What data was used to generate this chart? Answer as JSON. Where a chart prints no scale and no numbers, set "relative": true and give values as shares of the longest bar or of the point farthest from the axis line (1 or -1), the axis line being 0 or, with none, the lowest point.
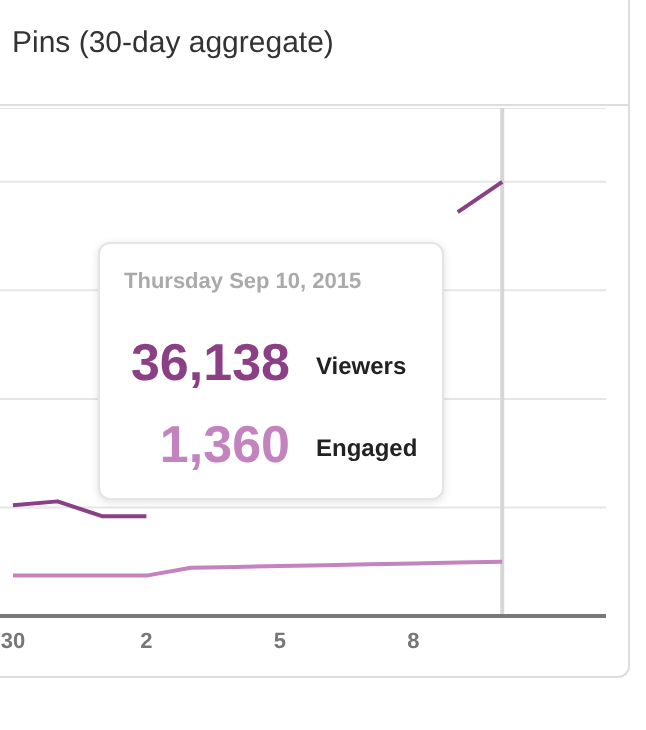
{
  "chart_data": {
    "type": "line",
    "title": "Pins (30-day aggregate)",
    "x": [
      "2015-08-30",
      "2015-08-31",
      "2015-09-01",
      "2015-09-02",
      "2015-09-03",
      "2015-09-04",
      "2015-09-05",
      "2015-09-06",
      "2015-09-07",
      "2015-09-08",
      "2015-09-09",
      "2015-09-10"
    ],
    "xlim": [
      "2015-08-29T17:00",
      "2015-09-12T08:00"
    ],
    "xticks": [
      {
        "value": "2015-08-30",
        "label": "30"
      },
      {
        "value": "2015-09-02",
        "label": "2"
      },
      {
        "value": "2015-09-05",
        "label": "5"
      },
      {
        "value": "2015-09-08",
        "label": "8"
      }
    ],
    "relative": true,
    "series": [
      {
        "color": "#8b3f84",
        "values": [
          0.255,
          0.264,
          0.23,
          0.23,
          null,
          null,
          null,
          null,
          null,
          null,
          0.93,
          1
        ]
      },
      {
        "color": "#c283bf",
        "values": [
          0.093,
          0.093,
          0.093,
          0.093,
          0.111,
          0.113,
          0.115,
          0.117,
          0.119,
          0.121,
          0.123,
          0.125
        ]
      }
    ],
    "annotations": [
      "Thursday Sep 10, 2015",
      "36,138",
      "Viewers",
      "1,360",
      "Engaged"
    ],
    "ref_lines": [
      {
        "axis": "x",
        "value": "2015-09-10",
        "color": "#d6d6d6"
      }
    ],
    "grid": "y",
    "legend": false,
    "marker": "none",
    "line_style": "solid"
  }
}
